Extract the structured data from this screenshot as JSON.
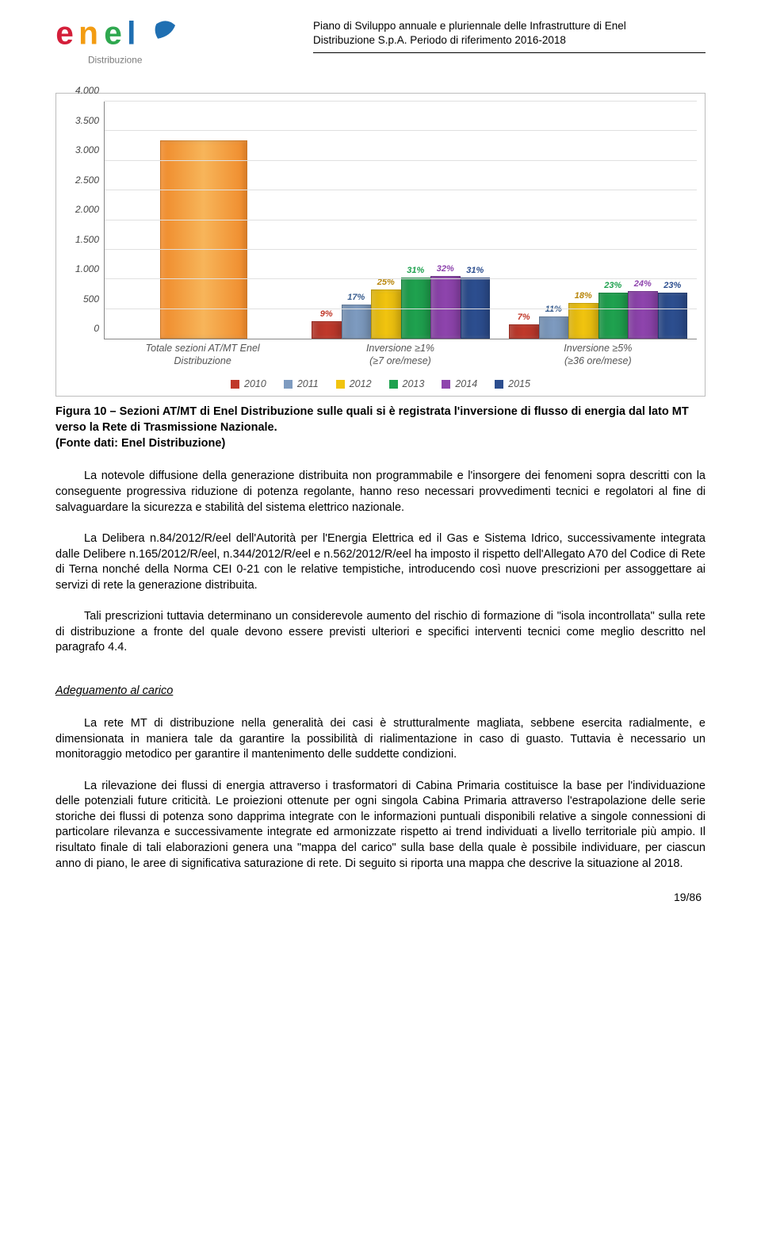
{
  "header": {
    "line1": "Piano di Sviluppo annuale e pluriennale delle Infrastrutture di Enel",
    "line2": "Distribuzione S.p.A. Periodo di riferimento 2016-2018"
  },
  "logo": {
    "brand_top": "enel",
    "brand_sub": "Distribuzione",
    "colors": {
      "red": "#d41f3a",
      "orange": "#f39c12",
      "green": "#2fa84f",
      "blue": "#1f6fb2",
      "sub": "#7a7a7a"
    }
  },
  "chart": {
    "type": "bar",
    "ymax": 4000,
    "ytick_step": 500,
    "ytick_labels": [
      "0",
      "500",
      "1.000",
      "1.500",
      "2.000",
      "2.500",
      "3.000",
      "3.500",
      "4.000"
    ],
    "grid_color": "#e0e0e0",
    "axis_color": "#888888",
    "background_color": "#ffffff",
    "border_color": "#bdbdbd",
    "label_font_style": "italic",
    "label_color": "#555555",
    "series": [
      {
        "name": "2010",
        "color": "#c0392b"
      },
      {
        "name": "2011",
        "color": "#7e9bc0"
      },
      {
        "name": "2012",
        "color": "#f1c40f"
      },
      {
        "name": "2013",
        "color": "#1fa24f"
      },
      {
        "name": "2014",
        "color": "#8e44ad"
      },
      {
        "name": "2015",
        "color": "#2c4e8f"
      }
    ],
    "groups": [
      {
        "label": "Totale sezioni AT/MT Enel\nDistribuzione",
        "bars": [
          {
            "value": 3350,
            "label": "",
            "color": "#c0392b"
          },
          {
            "value": 3350,
            "label": "",
            "color": "#ef8a2b"
          },
          {
            "value": 3350,
            "label": "",
            "color": "#ef8a2b"
          },
          {
            "value": 3350,
            "label": "",
            "color": "#ef8a2b"
          },
          {
            "value": 3350,
            "label": "",
            "color": "#ef8a2b"
          },
          {
            "value": 3350,
            "label": "",
            "color": "#ef8a2b"
          }
        ],
        "single_visual": true,
        "single_color": "#ef8a2b"
      },
      {
        "label": "Inversione ≥1%\n(≥7 ore/mese)",
        "bars": [
          {
            "value": 300,
            "label": "9%",
            "color": "#c0392b",
            "label_color": "#c0392b"
          },
          {
            "value": 580,
            "label": "17%",
            "color": "#7e9bc0",
            "label_color": "#3a5e8f"
          },
          {
            "value": 830,
            "label": "25%",
            "color": "#f1c40f",
            "label_color": "#b8860b"
          },
          {
            "value": 1030,
            "label": "31%",
            "color": "#1fa24f",
            "label_color": "#1fa24f"
          },
          {
            "value": 1060,
            "label": "32%",
            "color": "#8e44ad",
            "label_color": "#8e44ad"
          },
          {
            "value": 1030,
            "label": "31%",
            "color": "#2c4e8f",
            "label_color": "#2c4e8f"
          }
        ]
      },
      {
        "label": "Inversione ≥5%\n(≥36 ore/mese)",
        "bars": [
          {
            "value": 240,
            "label": "7%",
            "color": "#c0392b",
            "label_color": "#c0392b"
          },
          {
            "value": 370,
            "label": "11%",
            "color": "#7e9bc0",
            "label_color": "#3a5e8f"
          },
          {
            "value": 600,
            "label": "18%",
            "color": "#f1c40f",
            "label_color": "#b8860b"
          },
          {
            "value": 770,
            "label": "23%",
            "color": "#1fa24f",
            "label_color": "#1fa24f"
          },
          {
            "value": 800,
            "label": "24%",
            "color": "#8e44ad",
            "label_color": "#8e44ad"
          },
          {
            "value": 770,
            "label": "23%",
            "color": "#2c4e8f",
            "label_color": "#2c4e8f"
          }
        ]
      }
    ]
  },
  "caption": "Figura 10 – Sezioni AT/MT di Enel Distribuzione sulle quali si è registrata l'inversione di flusso di energia dal lato MT verso la Rete di Trasmissione Nazionale.",
  "source": "(Fonte dati: Enel Distribuzione)",
  "para1": "La notevole diffusione della generazione distribuita non programmabile e l'insorgere dei fenomeni sopra descritti con la conseguente progressiva riduzione di potenza regolante, hanno reso necessari provvedimenti tecnici e regolatori al fine di salvaguardare la sicurezza e stabilità del sistema elettrico nazionale.",
  "para2": "La Delibera n.84/2012/R/eel dell'Autorità per l'Energia Elettrica ed il Gas e Sistema Idrico, successivamente integrata dalle Delibere n.165/2012/R/eel, n.344/2012/R/eel e n.562/2012/R/eel ha imposto il rispetto dell'Allegato A70 del Codice di Rete di Terna nonché della Norma CEI 0-21 con le relative tempistiche, introducendo così nuove prescrizioni per assoggettare ai servizi di rete la generazione distribuita.",
  "para3": "Tali prescrizioni tuttavia determinano un considerevole aumento del rischio di formazione di \"isola incontrollata\" sulla rete di distribuzione a fronte del quale devono essere previsti ulteriori e specifici interventi tecnici come meglio descritto nel paragrafo 4.4.",
  "section_title": "Adeguamento al carico",
  "para4": "La rete MT di distribuzione nella generalità dei casi è strutturalmente magliata, sebbene esercita radialmente, e dimensionata in maniera tale da garantire la possibilità di rialimentazione in caso di guasto. Tuttavia è necessario un monitoraggio metodico per garantire il mantenimento delle suddette condizioni.",
  "para5": "La rilevazione dei flussi di energia attraverso i trasformatori di Cabina Primaria costituisce la base per l'individuazione delle potenziali future criticità. Le proiezioni ottenute per ogni singola Cabina Primaria attraverso l'estrapolazione delle serie storiche dei flussi di potenza sono dapprima integrate con le informazioni puntuali disponibili relative a singole connessioni di particolare rilevanza e successivamente integrate ed armonizzate rispetto ai trend individuati a livello territoriale più ampio. Il risultato finale di tali elaborazioni genera una \"mappa del carico\" sulla base della quale è possibile individuare, per ciascun anno di piano, le aree di significativa saturazione di rete. Di seguito si riporta una mappa che descrive la situazione al 2018.",
  "page_number": "19/86"
}
